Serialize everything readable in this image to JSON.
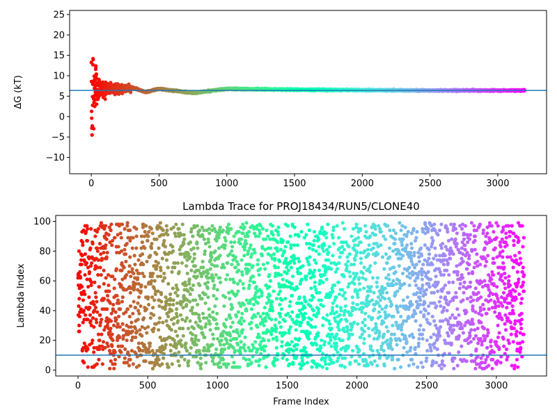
{
  "chart_data": [
    {
      "type": "scatter",
      "panel": "top",
      "title": "",
      "xlabel": "",
      "ylabel": "ΔG (kT)",
      "xlim": [
        -160,
        3360
      ],
      "ylim": [
        -14,
        26
      ],
      "xticks": [
        0,
        500,
        1000,
        1500,
        2000,
        2500,
        3000
      ],
      "yticks": [
        -10,
        -5,
        0,
        5,
        10,
        15,
        20,
        25
      ],
      "reference_line": 6.4,
      "reference_color": "#1f77b4",
      "colormap": "rainbow_r",
      "n_frames": 3200,
      "grid": false,
      "series_description_points": [
        {
          "x": 0,
          "y": 10.0
        },
        {
          "x": 2,
          "y": 2.0
        },
        {
          "x": 5,
          "y": -4.3
        },
        {
          "x": 10,
          "y": 4.0
        },
        {
          "x": 14,
          "y": 13.5
        },
        {
          "x": 18,
          "y": -1.8
        },
        {
          "x": 22,
          "y": 8.5
        },
        {
          "x": 28,
          "y": 3.0
        },
        {
          "x": 34,
          "y": 14.0
        },
        {
          "x": 40,
          "y": 6.0
        },
        {
          "x": 48,
          "y": 9.5
        },
        {
          "x": 60,
          "y": 5.0
        },
        {
          "x": 75,
          "y": 8.0
        },
        {
          "x": 90,
          "y": 4.0
        },
        {
          "x": 110,
          "y": 8.5
        },
        {
          "x": 130,
          "y": 5.5
        },
        {
          "x": 150,
          "y": 7.8
        },
        {
          "x": 170,
          "y": 6.0
        },
        {
          "x": 200,
          "y": 4.5
        },
        {
          "x": 230,
          "y": 7.0
        },
        {
          "x": 260,
          "y": 6.4
        },
        {
          "x": 300,
          "y": 7.2
        },
        {
          "x": 400,
          "y": 6.0
        },
        {
          "x": 500,
          "y": 6.8
        },
        {
          "x": 750,
          "y": 5.8
        },
        {
          "x": 1000,
          "y": 6.8
        },
        {
          "x": 1500,
          "y": 6.6
        },
        {
          "x": 2000,
          "y": 6.5
        },
        {
          "x": 2500,
          "y": 6.4
        },
        {
          "x": 3200,
          "y": 6.4
        }
      ]
    },
    {
      "type": "scatter",
      "panel": "bottom",
      "title": "Lambda Trace for PROJ18434/RUN5/CLONE40",
      "xlabel": "Frame Index",
      "ylabel": "Lambda Index",
      "xlim": [
        -160,
        3360
      ],
      "ylim": [
        -4,
        104
      ],
      "xticks": [
        0,
        500,
        1000,
        1500,
        2000,
        2500,
        3000
      ],
      "yticks": [
        0,
        20,
        40,
        60,
        80,
        100
      ],
      "reference_line": 10,
      "reference_color": "#1f77b4",
      "colormap": "rainbow_r",
      "n_frames": 3200,
      "lambda_range": [
        1,
        99
      ],
      "grid": false
    }
  ]
}
